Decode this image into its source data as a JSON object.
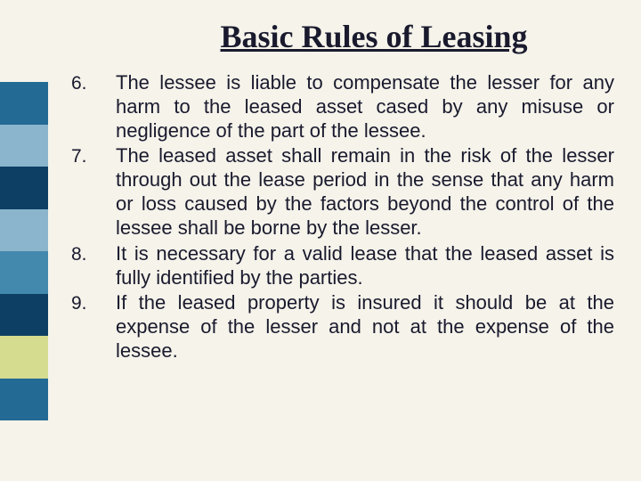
{
  "title": "Basic Rules of Leasing",
  "sidebar_colors": [
    "#236a94",
    "#8ab5cc",
    "#0c3f63",
    "#8ab5cc",
    "#4388ad",
    "#0c3f63",
    "#d6dc8f",
    "#236a94"
  ],
  "background_color": "#f5f3ea",
  "text_color": "#1a1a2e",
  "title_font": "Times New Roman",
  "body_font": "Arial",
  "title_fontsize": 36,
  "body_fontsize": 22,
  "items": [
    {
      "num": "6.",
      "text": "The lessee is liable to compensate the lesser for any harm to the leased asset cased by any misuse or negligence of the part of the lessee."
    },
    {
      "num": "7.",
      "text": "The leased asset shall remain in the risk of the lesser through out the lease period in the sense that any harm or loss caused by the factors beyond the control of the lessee shall be borne by the lesser."
    },
    {
      "num": "8.",
      "text": "It is necessary for a valid lease that the leased asset is fully identified by the parties."
    },
    {
      "num": "9.",
      "text": "If the leased property is insured it should be at the expense of the lesser and not at the expense of the lessee."
    }
  ]
}
